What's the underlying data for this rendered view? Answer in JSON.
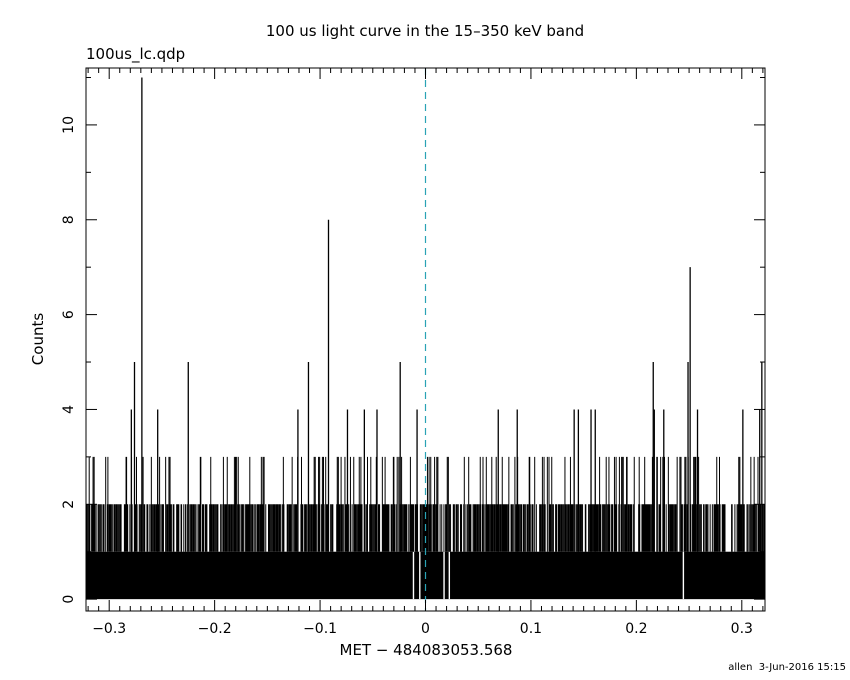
{
  "chart_data": {
    "type": "bar",
    "title": "100 us light curve in the 15–350 keV band",
    "file_label": "100us_lc.qdp",
    "xlabel": "MET − 484083053.568",
    "ylabel": "Counts",
    "xlim": [
      -0.322,
      0.322
    ],
    "ylim": [
      -0.25,
      11.2
    ],
    "x_ticks": [
      -0.3,
      -0.2,
      -0.1,
      0,
      0.1,
      0.2,
      0.3
    ],
    "x_tick_labels": [
      "−0.3",
      "−0.2",
      "−0.1",
      "0",
      "0.1",
      "0.2",
      "0.3"
    ],
    "y_ticks": [
      0,
      2,
      4,
      6,
      8,
      10
    ],
    "y_tick_labels": [
      "0",
      "2",
      "4",
      "6",
      "8",
      "10"
    ],
    "bin_width": 0.0001,
    "baseline_level": 1,
    "baseline_gaps": [
      -0.0115,
      -0.0055,
      0.0175,
      0.0225,
      0.2445
    ],
    "peaks": [
      {
        "x": -0.269,
        "y": 11
      },
      {
        "x": -0.092,
        "y": 8
      },
      {
        "x": 0.251,
        "y": 7
      },
      {
        "x": 0.249,
        "y": 5
      },
      {
        "x": -0.276,
        "y": 5
      },
      {
        "x": -0.225,
        "y": 5
      },
      {
        "x": -0.111,
        "y": 5
      },
      {
        "x": -0.024,
        "y": 5
      },
      {
        "x": 0.216,
        "y": 5
      },
      {
        "x": 0.319,
        "y": 5
      },
      {
        "x": -0.279,
        "y": 4
      },
      {
        "x": -0.254,
        "y": 4
      },
      {
        "x": -0.121,
        "y": 4
      },
      {
        "x": -0.074,
        "y": 4
      },
      {
        "x": -0.058,
        "y": 4
      },
      {
        "x": -0.046,
        "y": 4
      },
      {
        "x": -0.008,
        "y": 4
      },
      {
        "x": 0.069,
        "y": 4
      },
      {
        "x": 0.087,
        "y": 4
      },
      {
        "x": 0.141,
        "y": 4
      },
      {
        "x": 0.145,
        "y": 4
      },
      {
        "x": 0.157,
        "y": 4
      },
      {
        "x": 0.161,
        "y": 4
      },
      {
        "x": 0.217,
        "y": 4
      },
      {
        "x": 0.226,
        "y": 4
      },
      {
        "x": 0.258,
        "y": 4
      },
      {
        "x": 0.301,
        "y": 4
      },
      {
        "x": 0.317,
        "y": 4
      }
    ],
    "cutoff_line": {
      "x": 0,
      "style": "dashed",
      "color": "#2aa3b5"
    },
    "colors": {
      "data": "#000000",
      "axes": "#000000",
      "cutoff": "#2aa3b5",
      "background": "#ffffff"
    }
  },
  "footer": {
    "user": "allen",
    "date": "3-Jun-2016 15:15"
  }
}
